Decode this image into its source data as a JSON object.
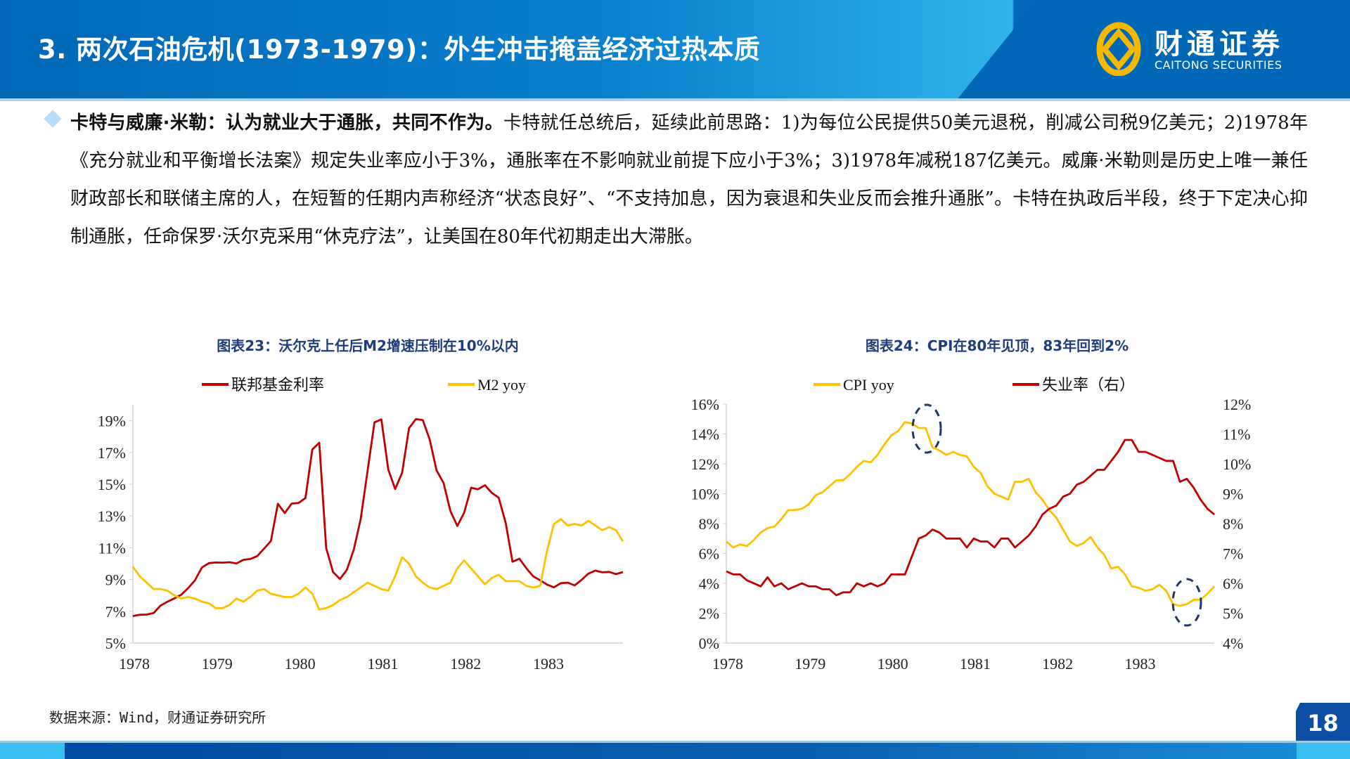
{
  "header": {
    "title": "3. 两次石油危机(1973-1979)：外生冲击掩盖经济过热本质",
    "logo_cn": "财通证券",
    "logo_en": "CAITONG SECURITIES"
  },
  "paragraph": {
    "lead": "卡特与威廉·米勒：认为就业大于通胀，共同不作为。",
    "body": "卡特就任总统后，延续此前思路：1)为每位公民提供50美元退税，削减公司税9亿美元；2)1978年《充分就业和平衡增长法案》规定失业率应小于3%，通胀率在不影响就业前提下应小于3%；3)1978年减税187亿美元。威廉·米勒则是历史上唯一兼任财政部长和联储主席的人，在短暂的任期内声称经济“状态良好”、“不支持加息，因为衰退和失业反而会推升通胀”。卡特在执政后半段，终于下定决心抑制通胀，任命保罗·沃尔克采用“休克疗法”，让美国在80年代初期走出大滞胀。"
  },
  "source": "数据来源：Wind，财通证券研究所",
  "page_number": "18",
  "chart_data": [
    {
      "type": "line",
      "title": "图表23：沃尔克上任后M2增速压制在10%以内",
      "x_start": "1978-01",
      "frequency": "monthly",
      "xticks": [
        "1978",
        "1979",
        "1980",
        "1981",
        "1982",
        "1983"
      ],
      "yticks": [
        "5%",
        "7%",
        "9%",
        "11%",
        "13%",
        "15%",
        "17%",
        "19%"
      ],
      "ylim": [
        5,
        20
      ],
      "legend": "top",
      "series": [
        {
          "name": "联邦基金利率",
          "color": "#c00000",
          "values": [
            6.7,
            6.78,
            6.79,
            6.89,
            7.36,
            7.6,
            7.81,
            8.04,
            8.45,
            8.96,
            9.76,
            10.03,
            10.07,
            10.06,
            10.09,
            10.01,
            10.24,
            10.29,
            10.47,
            10.94,
            11.43,
            13.77,
            13.18,
            13.78,
            13.82,
            14.13,
            17.19,
            17.61,
            10.98,
            9.47,
            9.03,
            9.61,
            10.87,
            12.81,
            15.85,
            18.9,
            19.08,
            15.93,
            14.7,
            15.72,
            18.52,
            19.1,
            19.04,
            17.82,
            15.87,
            15.08,
            13.31,
            12.37,
            13.22,
            14.78,
            14.68,
            14.94,
            14.45,
            14.15,
            12.59,
            10.12,
            10.31,
            9.71,
            9.2,
            8.95,
            8.68,
            8.51,
            8.77,
            8.8,
            8.63,
            8.98,
            9.37,
            9.56,
            9.45,
            9.48,
            9.34,
            9.47
          ]
        },
        {
          "name": "M2 yoy",
          "color": "#ffc000",
          "values": [
            9.8,
            9.2,
            8.8,
            8.4,
            8.4,
            8.3,
            8.0,
            7.8,
            7.9,
            7.8,
            7.6,
            7.5,
            7.2,
            7.2,
            7.4,
            7.8,
            7.6,
            7.9,
            8.3,
            8.4,
            8.1,
            8.0,
            7.9,
            7.9,
            8.1,
            8.5,
            8.1,
            7.1,
            7.2,
            7.4,
            7.7,
            7.9,
            8.2,
            8.5,
            8.8,
            8.6,
            8.4,
            8.3,
            9.2,
            10.4,
            10.0,
            9.2,
            8.8,
            8.5,
            8.4,
            8.6,
            8.8,
            9.7,
            10.2,
            9.7,
            9.2,
            8.7,
            9.1,
            9.3,
            8.9,
            8.9,
            8.9,
            8.6,
            8.5,
            8.6,
            10.8,
            12.5,
            12.8,
            12.4,
            12.5,
            12.4,
            12.7,
            12.4,
            12.1,
            12.3,
            12.1,
            11.4
          ]
        }
      ]
    },
    {
      "type": "line",
      "title": "图表24：CPI在80年见顶，83年回到2%",
      "x_start": "1978-01",
      "frequency": "monthly",
      "xticks": [
        "1978",
        "1979",
        "1980",
        "1981",
        "1982",
        "1983"
      ],
      "yticks": [
        "0%",
        "2%",
        "4%",
        "6%",
        "8%",
        "10%",
        "12%",
        "14%",
        "16%"
      ],
      "ylim": [
        0,
        16
      ],
      "y2ticks": [
        "4%",
        "5%",
        "6%",
        "7%",
        "8%",
        "9%",
        "10%",
        "11%",
        "12%"
      ],
      "y2lim": [
        4,
        12
      ],
      "legend": "top",
      "annotations": [
        "dashed circle at 1980 CPI peak",
        "dashed circle at 1983 CPI trough"
      ],
      "series": [
        {
          "name": "CPI yoy",
          "axis": "left",
          "color": "#ffc000",
          "values": [
            6.8,
            6.4,
            6.6,
            6.5,
            6.9,
            7.4,
            7.7,
            7.8,
            8.3,
            8.9,
            8.9,
            9.0,
            9.3,
            9.9,
            10.1,
            10.5,
            10.9,
            10.9,
            11.3,
            11.8,
            12.2,
            12.1,
            12.6,
            13.3,
            13.9,
            14.2,
            14.8,
            14.7,
            14.4,
            14.4,
            13.1,
            12.9,
            12.6,
            12.8,
            12.6,
            12.5,
            11.8,
            11.4,
            10.5,
            10.0,
            9.8,
            9.6,
            10.8,
            10.8,
            11.0,
            10.1,
            9.6,
            8.9,
            8.4,
            7.6,
            6.8,
            6.5,
            6.7,
            7.1,
            6.4,
            5.9,
            5.0,
            5.1,
            4.6,
            3.8,
            3.7,
            3.5,
            3.6,
            3.9,
            3.5,
            2.6,
            2.5,
            2.6,
            2.9,
            2.9,
            3.3,
            3.8
          ]
        },
        {
          "name": "失业率（右）",
          "axis": "right",
          "color": "#c00000",
          "values": [
            6.4,
            6.3,
            6.3,
            6.1,
            6.0,
            5.9,
            6.2,
            5.9,
            6.0,
            5.8,
            5.9,
            6.0,
            5.9,
            5.9,
            5.8,
            5.8,
            5.6,
            5.7,
            5.7,
            6.0,
            5.9,
            6.0,
            5.9,
            6.0,
            6.3,
            6.3,
            6.3,
            6.9,
            7.5,
            7.6,
            7.8,
            7.7,
            7.5,
            7.5,
            7.5,
            7.2,
            7.5,
            7.4,
            7.4,
            7.2,
            7.5,
            7.5,
            7.2,
            7.4,
            7.6,
            7.9,
            8.3,
            8.5,
            8.6,
            8.9,
            9.0,
            9.3,
            9.4,
            9.6,
            9.8,
            9.8,
            10.1,
            10.4,
            10.8,
            10.8,
            10.4,
            10.4,
            10.3,
            10.2,
            10.1,
            10.1,
            9.4,
            9.5,
            9.2,
            8.8,
            8.5,
            8.3
          ]
        }
      ]
    }
  ]
}
